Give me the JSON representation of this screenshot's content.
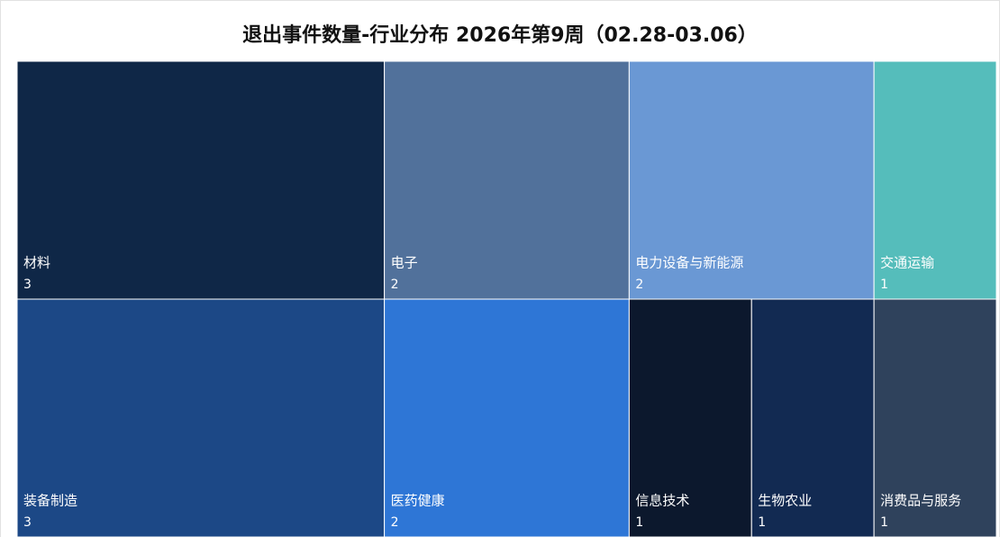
{
  "chart_data": {
    "type": "treemap",
    "title": "退出事件数量-行业分布 2026年第9周（02.28-03.06）",
    "categories": [
      "材料",
      "电子",
      "电力设备与新能源",
      "交通运输",
      "装备制造",
      "医药健康",
      "信息技术",
      "生物农业",
      "消费品与服务"
    ],
    "values": [
      3,
      2,
      2,
      1,
      3,
      2,
      1,
      1,
      1
    ],
    "colors": [
      "#0f2747",
      "#51719b",
      "#6a98d4",
      "#55bdbb",
      "#1c4886",
      "#2e76d6",
      "#0c182d",
      "#122a52",
      "#2f425c"
    ]
  }
}
